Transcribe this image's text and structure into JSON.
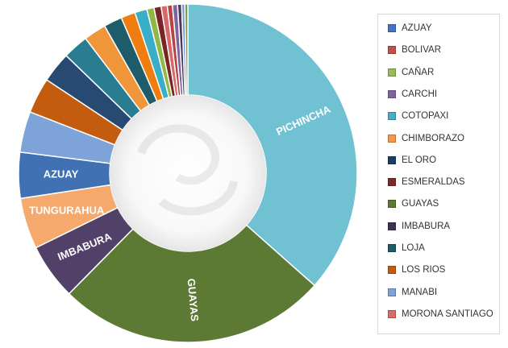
{
  "chart_data": {
    "type": "pie",
    "variant": "donut",
    "title": "",
    "legend_position": "right",
    "slices": [
      {
        "name": "PICHINCHA",
        "value": 37.5,
        "color": "#70c1d2",
        "label": "PICHINCHA"
      },
      {
        "name": "GUAYAS",
        "value": 26.5,
        "color": "#5d7a35",
        "label": "GUAYAS"
      },
      {
        "name": "IMBABURA",
        "value": 5.5,
        "color": "#514168",
        "label": "IMBABURA"
      },
      {
        "name": "TUNGURAHUA",
        "value": 5.0,
        "color": "#f5a96c",
        "label": "TUNGURAHUA"
      },
      {
        "name": "AZUAY",
        "value": 4.5,
        "color": "#3f71b3",
        "label": "AZUAY"
      },
      {
        "name": "MANABI",
        "value": 4.0,
        "color": "#7ea3d8",
        "label": ""
      },
      {
        "name": "LOS RIOS",
        "value": 3.5,
        "color": "#c35c0e",
        "label": ""
      },
      {
        "name": "EL ORO",
        "value": 3.0,
        "color": "#284a72",
        "label": ""
      },
      {
        "name": "LOJA",
        "value": 2.5,
        "color": "#2a7d90",
        "label": ""
      },
      {
        "name": "CHIMBORAZO",
        "value": 2.2,
        "color": "#f0963a",
        "label": ""
      },
      {
        "name": "LOJA",
        "value": 1.8,
        "color": "#1e5c6c",
        "label": ""
      },
      {
        "name": "LOS RIOS",
        "value": 1.4,
        "color": "#f07d10",
        "label": ""
      },
      {
        "name": "COTOPAXI",
        "value": 1.2,
        "color": "#3aaec6",
        "label": ""
      },
      {
        "name": "CAÑAR",
        "value": 0.7,
        "color": "#8fb944",
        "label": ""
      },
      {
        "name": "ESMERALDAS",
        "value": 0.7,
        "color": "#7a2424",
        "label": ""
      },
      {
        "name": "MORONA SANTIAGO",
        "value": 0.6,
        "color": "#d9686a",
        "label": ""
      },
      {
        "name": "BOLIVAR",
        "value": 0.5,
        "color": "#b84442",
        "label": ""
      },
      {
        "name": "CARCHI",
        "value": 0.5,
        "color": "#8064a2",
        "label": ""
      },
      {
        "name": "IMBABURA",
        "value": 0.4,
        "color": "#4a3a63",
        "label": ""
      },
      {
        "name": "MANABI",
        "value": 0.3,
        "color": "#6f95d0",
        "label": ""
      },
      {
        "name": "GUAYAS",
        "value": 0.3,
        "color": "#789b47",
        "label": ""
      }
    ],
    "legend": [
      {
        "name": "AZUAY",
        "color": "#4472c4"
      },
      {
        "name": "BOLIVAR",
        "color": "#c0504d"
      },
      {
        "name": "CAÑAR",
        "color": "#9bbb59"
      },
      {
        "name": "CARCHI",
        "color": "#8064a2"
      },
      {
        "name": "COTOPAXI",
        "color": "#4bacc6"
      },
      {
        "name": "CHIMBORAZO",
        "color": "#f79646"
      },
      {
        "name": "EL ORO",
        "color": "#1f3d63"
      },
      {
        "name": "ESMERALDAS",
        "color": "#7b2c2a"
      },
      {
        "name": "GUAYAS",
        "color": "#5d7a35"
      },
      {
        "name": "IMBABURA",
        "color": "#3f3151"
      },
      {
        "name": "LOJA",
        "color": "#215968"
      },
      {
        "name": "LOS RIOS",
        "color": "#c55a11"
      },
      {
        "name": "MANABI",
        "color": "#7ea3d8"
      },
      {
        "name": "MORONA SANTIAGO",
        "color": "#d96b6b"
      }
    ]
  }
}
